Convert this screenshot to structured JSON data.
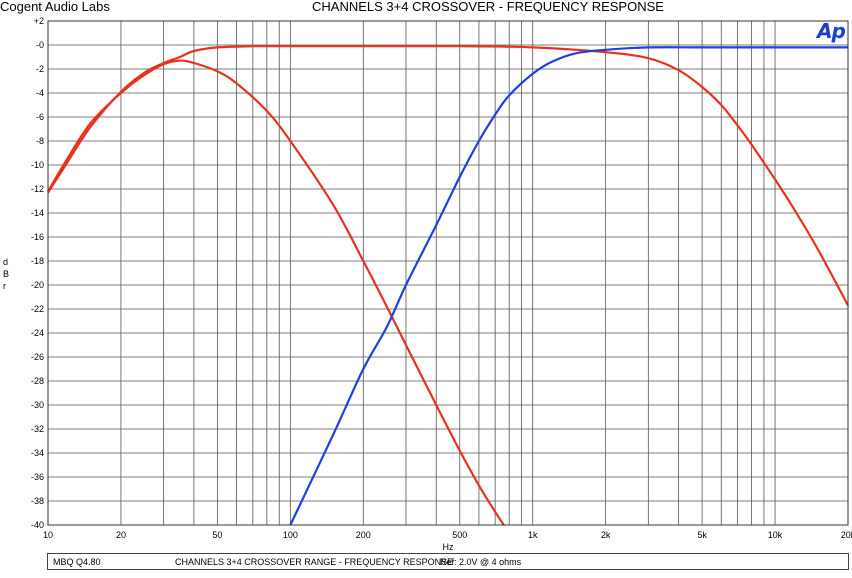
{
  "header": {
    "company": "Cogent Audio Labs",
    "title": "CHANNELS 3+4  CROSSOVER  -  FREQUENCY RESPONSE",
    "logo": "Ap"
  },
  "footer": {
    "id": "MBQ Q4.80",
    "desc": "CHANNELS 3+4  CROSSOVER RANGE  -  FREQUENCY RESPONSE",
    "ref": "Ref: 2.0V @ 4 ohms"
  },
  "colors": {
    "red": "#e8321e",
    "blue": "#1f3fe0",
    "grid": "#555555"
  },
  "chart_data": {
    "type": "line",
    "title": "CHANNELS 3+4  CROSSOVER  -  FREQUENCY RESPONSE",
    "xlabel": "Hz",
    "ylabel": "dBr",
    "xscale": "log",
    "xlim": [
      10,
      20000
    ],
    "ylim": [
      -40,
      2
    ],
    "grid": true,
    "x_ticks": [
      10,
      20,
      50,
      100,
      200,
      500,
      1000,
      2000,
      5000,
      10000,
      20000
    ],
    "x_tick_labels": [
      "10",
      "20",
      "50",
      "100",
      "200",
      "500",
      "1k",
      "2k",
      "5k",
      "10k",
      "20k"
    ],
    "y_ticks": [
      2,
      0,
      -2,
      -4,
      -6,
      -8,
      -10,
      -12,
      -14,
      -16,
      -18,
      -20,
      -22,
      -24,
      -26,
      -28,
      -30,
      -32,
      -34,
      -36,
      -38,
      -40
    ],
    "y_tick_labels": [
      "+2",
      "-0",
      "-2",
      "-4",
      "-6",
      "-8",
      "-10",
      "-12",
      "-14",
      "-16",
      "-18",
      "-20",
      "-22",
      "-24",
      "-26",
      "-28",
      "-30",
      "-32",
      "-34",
      "-36",
      "-38",
      "-40"
    ],
    "series": [
      {
        "color": "#e8321e",
        "points": [
          [
            10,
            -12.3
          ],
          [
            12,
            -9.8
          ],
          [
            15,
            -6.8
          ],
          [
            20,
            -3.9
          ],
          [
            25,
            -2.3
          ],
          [
            30,
            -1.5
          ],
          [
            35,
            -1.0
          ],
          [
            40,
            -0.5
          ],
          [
            50,
            -0.2
          ],
          [
            70,
            -0.1
          ],
          [
            100,
            -0.1
          ],
          [
            200,
            -0.1
          ],
          [
            500,
            -0.1
          ],
          [
            1000,
            -0.2
          ],
          [
            2000,
            -0.6
          ],
          [
            3000,
            -1.1
          ],
          [
            4000,
            -2.1
          ],
          [
            5000,
            -3.5
          ],
          [
            6000,
            -5.0
          ],
          [
            7000,
            -6.7
          ],
          [
            8000,
            -8.3
          ],
          [
            10000,
            -11.2
          ],
          [
            12000,
            -13.7
          ],
          [
            15000,
            -17.0
          ],
          [
            20000,
            -21.7
          ]
        ]
      },
      {
        "color": "#e8321e",
        "points": [
          [
            10,
            -12.2
          ],
          [
            12,
            -9.5
          ],
          [
            15,
            -6.5
          ],
          [
            20,
            -4.0
          ],
          [
            25,
            -2.5
          ],
          [
            30,
            -1.6
          ],
          [
            35,
            -1.3
          ],
          [
            40,
            -1.5
          ],
          [
            50,
            -2.2
          ],
          [
            60,
            -3.2
          ],
          [
            80,
            -5.5
          ],
          [
            100,
            -8.0
          ],
          [
            150,
            -13.3
          ],
          [
            200,
            -18.0
          ],
          [
            250,
            -21.8
          ],
          [
            300,
            -25.0
          ],
          [
            400,
            -30.0
          ],
          [
            500,
            -33.8
          ],
          [
            600,
            -36.7
          ],
          [
            700,
            -38.9
          ],
          [
            760,
            -40.0
          ]
        ]
      },
      {
        "color": "#1f3fe0",
        "points": [
          [
            100,
            -40.0
          ],
          [
            150,
            -32.5
          ],
          [
            200,
            -27.0
          ],
          [
            250,
            -23.5
          ],
          [
            300,
            -20.0
          ],
          [
            400,
            -15.0
          ],
          [
            500,
            -11.0
          ],
          [
            600,
            -8.0
          ],
          [
            700,
            -5.8
          ],
          [
            800,
            -4.2
          ],
          [
            1000,
            -2.4
          ],
          [
            1200,
            -1.4
          ],
          [
            1500,
            -0.7
          ],
          [
            2000,
            -0.4
          ],
          [
            3000,
            -0.2
          ],
          [
            5000,
            -0.2
          ],
          [
            10000,
            -0.2
          ],
          [
            20000,
            -0.2
          ]
        ]
      }
    ]
  }
}
